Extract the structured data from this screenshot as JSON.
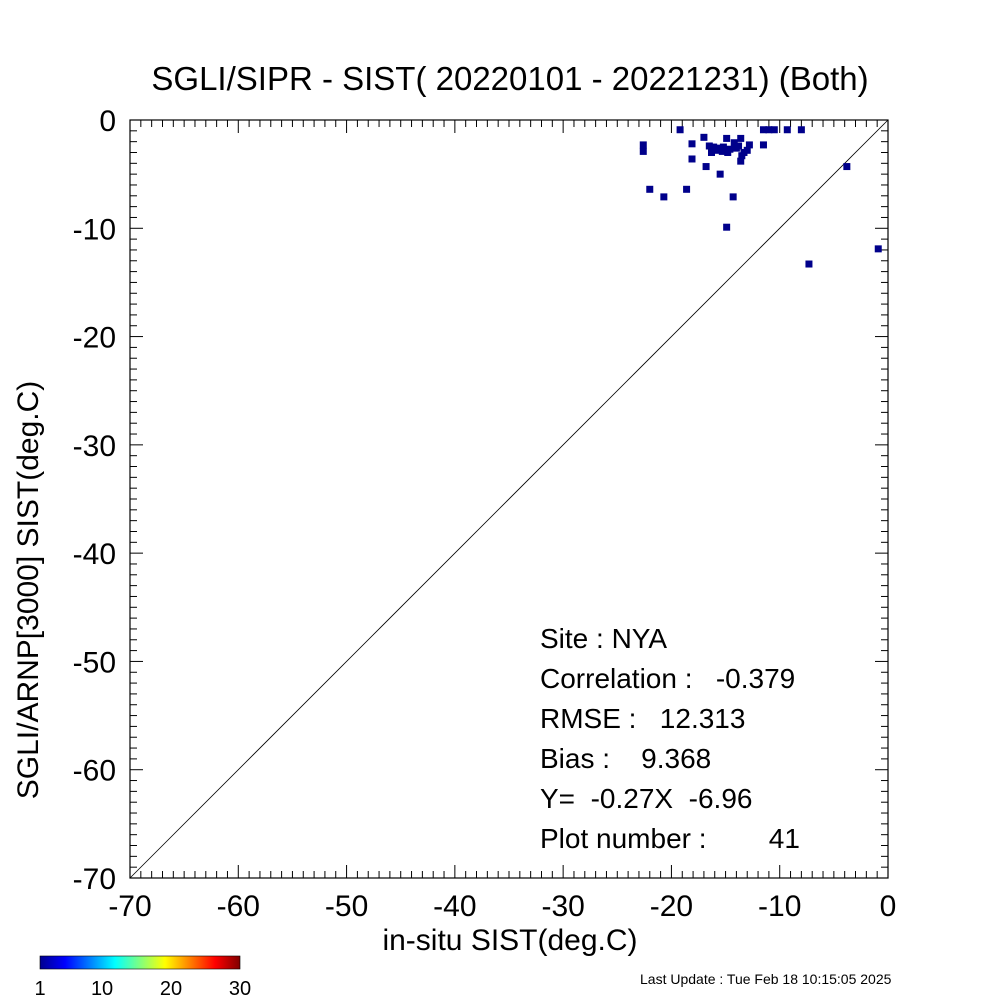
{
  "chart_data": {
    "type": "scatter",
    "title": "SGLI/SIPR - SIST( 20220101 - 20221231) (Both)",
    "xlabel": "in-situ SIST(deg.C)",
    "ylabel": "SGLI/ARNP[3000]     SIST(deg.C)",
    "xlim": [
      -70,
      0
    ],
    "ylim": [
      -70,
      0
    ],
    "xticks": [
      -70,
      -60,
      -50,
      -40,
      -30,
      -20,
      -10,
      0
    ],
    "yticks": [
      0,
      -10,
      -20,
      -30,
      -40,
      -50,
      -60,
      -70
    ],
    "xtick_labels": [
      "-70",
      "-60",
      "-50",
      "-40",
      "-30",
      "-20",
      "-10",
      "0"
    ],
    "ytick_labels": [
      "0",
      "-10",
      "-20",
      "-30",
      "-40",
      "-50",
      "-60",
      "-70"
    ],
    "minor_tick_step": 1,
    "reference_line": "y = x",
    "grid": false,
    "point_color": "#00008b",
    "points": [
      {
        "x": -19.2,
        "y": -0.9
      },
      {
        "x": -11.5,
        "y": -0.9
      },
      {
        "x": -11.0,
        "y": -0.9
      },
      {
        "x": -10.5,
        "y": -0.9
      },
      {
        "x": -9.3,
        "y": -0.9
      },
      {
        "x": -8.0,
        "y": -0.9
      },
      {
        "x": -22.6,
        "y": -2.3
      },
      {
        "x": -22.6,
        "y": -2.9
      },
      {
        "x": -18.1,
        "y": -2.2
      },
      {
        "x": -17.0,
        "y": -1.6
      },
      {
        "x": -16.5,
        "y": -2.4
      },
      {
        "x": -16.1,
        "y": -2.5
      },
      {
        "x": -15.9,
        "y": -2.8
      },
      {
        "x": -15.6,
        "y": -2.6
      },
      {
        "x": -15.3,
        "y": -2.9
      },
      {
        "x": -14.9,
        "y": -1.7
      },
      {
        "x": -14.6,
        "y": -2.7
      },
      {
        "x": -14.2,
        "y": -2.1
      },
      {
        "x": -14.0,
        "y": -2.6
      },
      {
        "x": -13.6,
        "y": -1.7
      },
      {
        "x": -13.5,
        "y": -3.3
      },
      {
        "x": -13.3,
        "y": -3.0
      },
      {
        "x": -13.0,
        "y": -2.8
      },
      {
        "x": -12.8,
        "y": -2.3
      },
      {
        "x": -11.5,
        "y": -2.3
      },
      {
        "x": -16.8,
        "y": -4.3
      },
      {
        "x": -15.5,
        "y": -5.0
      },
      {
        "x": -18.1,
        "y": -3.6
      },
      {
        "x": -13.6,
        "y": -3.8
      },
      {
        "x": -3.8,
        "y": -4.3
      },
      {
        "x": -22.0,
        "y": -6.4
      },
      {
        "x": -20.7,
        "y": -7.1
      },
      {
        "x": -18.6,
        "y": -6.4
      },
      {
        "x": -14.3,
        "y": -7.1
      },
      {
        "x": -14.9,
        "y": -9.9
      },
      {
        "x": -0.9,
        "y": -11.9
      },
      {
        "x": -7.3,
        "y": -13.3
      },
      {
        "x": -15.2,
        "y": -2.5
      },
      {
        "x": -14.8,
        "y": -3.0
      },
      {
        "x": -16.3,
        "y": -3.0
      },
      {
        "x": -13.8,
        "y": -2.4
      }
    ],
    "stats": {
      "site": "Site : NYA",
      "correlation": "Correlation :   -0.379",
      "rmse": "RMSE :   12.313",
      "bias": "Bias :    9.368",
      "regression": "Y=  -0.27X  -6.96",
      "plot_number": "Plot number :        41"
    },
    "colorbar": {
      "range": [
        1,
        30
      ],
      "tick_labels": [
        "1",
        "10",
        "20",
        "30"
      ],
      "tick_values": [
        1,
        10,
        20,
        30
      ]
    }
  },
  "footer": {
    "last_update": "Last Update : Tue Feb 18 10:15:05 2025"
  }
}
